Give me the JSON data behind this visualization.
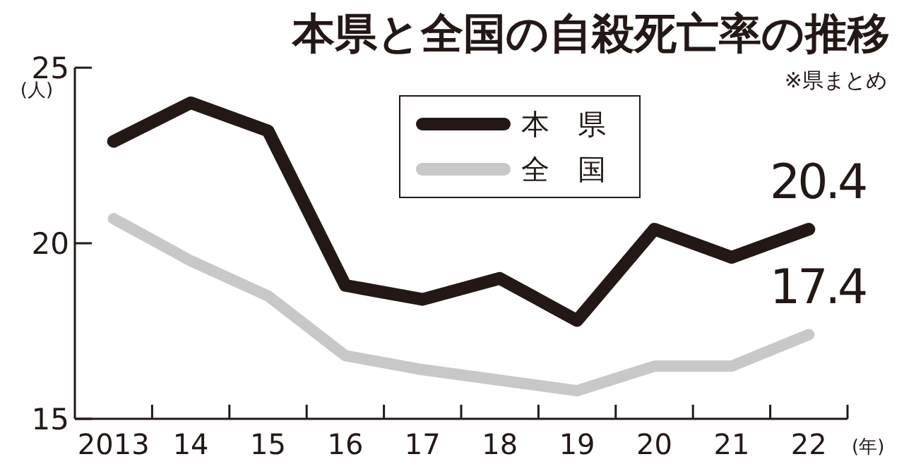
{
  "chart_data": {
    "type": "line",
    "title": "本県と全国の自殺死亡率の推移",
    "annotations": [
      "※県まとめ"
    ],
    "xlabel": "(年)",
    "ylabel": "(人)",
    "categories": [
      "2013",
      "14",
      "15",
      "16",
      "17",
      "18",
      "19",
      "20",
      "21",
      "22"
    ],
    "series": [
      {
        "name": "本　県",
        "color": "#231815",
        "values": [
          22.9,
          24.0,
          23.2,
          18.8,
          18.4,
          19.0,
          17.8,
          20.4,
          19.6,
          20.4
        ],
        "value_labels": [
          null,
          null,
          null,
          null,
          null,
          null,
          null,
          null,
          null,
          "20.4"
        ]
      },
      {
        "name": "全　国",
        "color": "#c8c8c8",
        "values": [
          20.7,
          19.5,
          18.5,
          16.8,
          16.4,
          16.1,
          15.8,
          16.5,
          16.5,
          17.4
        ],
        "value_labels": [
          null,
          null,
          null,
          null,
          null,
          null,
          null,
          null,
          null,
          "17.4"
        ]
      }
    ],
    "ylim": [
      15,
      25
    ],
    "yticks": [
      15,
      20,
      25
    ],
    "grid": false,
    "legend": "top",
    "marker": "none",
    "line_style": "solid"
  }
}
